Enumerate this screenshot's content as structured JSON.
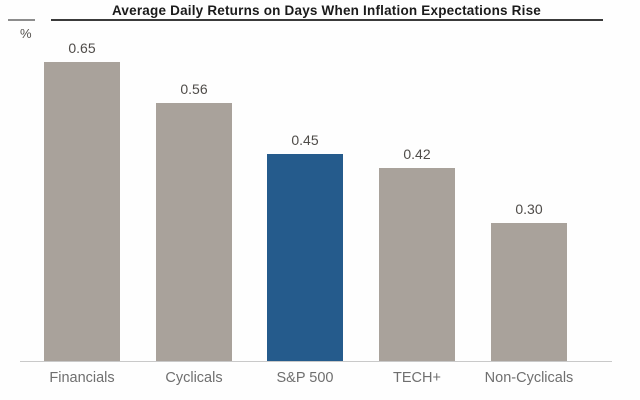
{
  "chart": {
    "title": "Average Daily Returns on Days When Inflation Expectations Rise",
    "unit_label": "%",
    "colors": {
      "bar_default": "#a9a29b",
      "bar_highlight": "#255b8c",
      "title_text": "#1a1a1a",
      "value_label": "#4f4c49",
      "axis_label": "#6f6f6f",
      "baseline": "#c9c9c9",
      "title_rule": "#3a3a3a"
    }
  },
  "chart_data": {
    "type": "bar",
    "title": "Average Daily Returns on Days When Inflation Expectations Rise",
    "categories": [
      "Financials",
      "Cyclicals",
      "S&P 500",
      "TECH+",
      "Non-Cyclicals"
    ],
    "values": [
      0.65,
      0.56,
      0.45,
      0.42,
      0.3
    ],
    "value_labels": [
      "0.65",
      "0.56",
      "0.45",
      "0.42",
      "0.30"
    ],
    "highlight_index": 2,
    "highlight_category": "S&P 500",
    "xlabel": "",
    "ylabel": "%",
    "ylim": [
      0,
      0.78
    ],
    "grid": false,
    "legend": false,
    "data_labels_position": "above-bar"
  }
}
